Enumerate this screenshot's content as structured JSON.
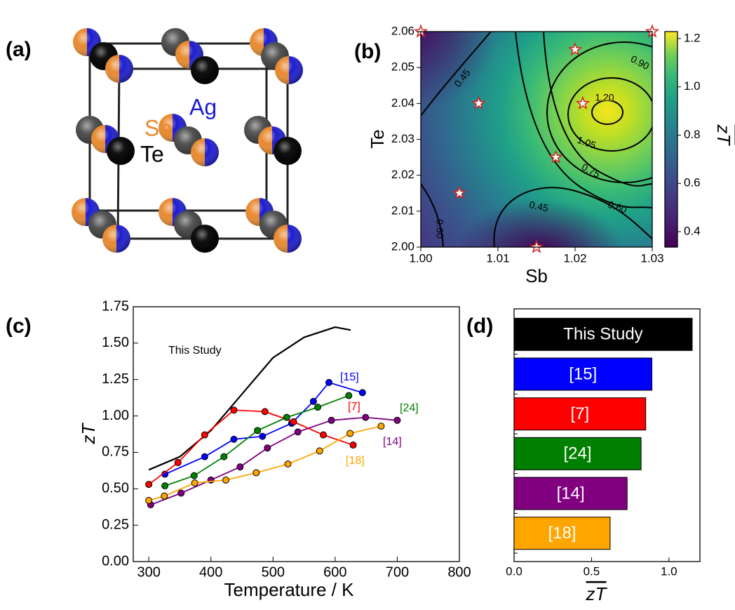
{
  "structure": {
    "panel_label": "(a)",
    "atoms": [
      "Sb",
      "Ag",
      "Te"
    ]
  },
  "chart_data": [
    {
      "type": "contour",
      "panel_label": "(b)",
      "xlabel": "Sb",
      "ylabel": "Te",
      "xlim": [
        1.0,
        1.03
      ],
      "ylim": [
        2.0,
        2.06
      ],
      "xticks": [
        {
          "value": 1.0,
          "label": "1.00"
        },
        1.01,
        1.02,
        1.03
      ],
      "yticks": [
        {
          "value": 2.0,
          "label": "2.00"
        },
        2.01,
        2.02,
        2.03,
        2.04,
        2.05,
        2.06
      ],
      "contour_labels": [
        "0.45",
        "0.90",
        "1.20",
        "1.05",
        "0.75",
        "0.60",
        "0.45",
        "0.60"
      ],
      "points": {
        "x": [
          1.0,
          1.0075,
          1.005,
          1.015,
          1.0175,
          1.02,
          1.021,
          1.03
        ],
        "y": [
          2.06,
          2.04,
          2.015,
          2.0,
          2.025,
          2.055,
          2.04,
          2.06
        ]
      },
      "colorbar": {
        "label": "zT",
        "clim": [
          0.336,
          1.229
        ],
        "ticks": [
          0.4,
          0.6,
          0.8,
          {
            "value": 1.0,
            "label": "1.0"
          },
          1.2
        ]
      }
    },
    {
      "type": "line",
      "panel_label": "(c)",
      "xlabel": "Temperature / K",
      "ylabel": "zT",
      "xlim": [
        275,
        800
      ],
      "ylim": [
        0,
        1.75
      ],
      "xticks": [
        300,
        400,
        500,
        600,
        700,
        800
      ],
      "yticks": [
        {
          "value": 0,
          "label": "0.00"
        },
        0.25,
        {
          "value": 0.5,
          "label": "0.50"
        },
        0.75,
        {
          "value": 1,
          "label": "1.00"
        },
        1.25,
        {
          "value": 1.5,
          "label": "1.50"
        },
        1.75
      ],
      "series": [
        {
          "name": "This Study",
          "color": "#000000",
          "markers": false,
          "x": [
            300,
            350,
            400,
            450,
            500,
            550,
            600,
            625
          ],
          "values": [
            0.63,
            0.72,
            0.9,
            1.15,
            1.4,
            1.54,
            1.61,
            1.59
          ]
        },
        {
          "name": "[15]",
          "color": "#0000ff",
          "markers": true,
          "x": [
            326,
            390,
            437,
            483,
            530,
            565,
            590,
            644
          ],
          "values": [
            0.6,
            0.72,
            0.84,
            0.86,
            0.95,
            1.1,
            1.23,
            1.16
          ]
        },
        {
          "name": "[7]",
          "color": "#ff0000",
          "markers": true,
          "x": [
            300,
            347,
            390,
            437,
            487,
            533,
            581,
            629
          ],
          "values": [
            0.53,
            0.68,
            0.87,
            1.04,
            1.03,
            0.96,
            0.87,
            0.8
          ]
        },
        {
          "name": "[24]",
          "color": "#008000",
          "markers": true,
          "x": [
            326,
            373,
            421,
            475,
            522,
            572,
            622
          ],
          "values": [
            0.52,
            0.59,
            0.72,
            0.9,
            0.99,
            1.06,
            1.14
          ]
        },
        {
          "name": "[14]",
          "color": "#800080",
          "markers": true,
          "x": [
            303,
            352,
            400,
            447,
            491,
            540,
            594,
            649,
            700
          ],
          "values": [
            0.39,
            0.47,
            0.56,
            0.65,
            0.78,
            0.89,
            0.97,
            0.99,
            0.97
          ]
        },
        {
          "name": "[18]",
          "color": "#ffa500",
          "markers": true,
          "x": [
            300,
            325,
            374,
            424,
            473,
            524,
            575,
            624,
            674
          ],
          "values": [
            0.42,
            0.45,
            0.54,
            0.56,
            0.61,
            0.67,
            0.76,
            0.88,
            0.93
          ]
        }
      ]
    },
    {
      "type": "barh",
      "panel_label": "(d)",
      "xlabel": "zT",
      "categories": [
        "This Study",
        "[15]",
        "[7]",
        "[24]",
        "[14]",
        "[18]"
      ],
      "values": [
        1.15,
        0.89,
        0.85,
        0.82,
        0.73,
        0.62
      ],
      "colors": [
        "#000000",
        "#0000ff",
        "#ff0000",
        "#008000",
        "#800080",
        "#ffa500"
      ],
      "xlim": [
        0,
        1.2
      ],
      "xticks": [
        {
          "value": 0,
          "label": "0.0"
        },
        0.5,
        {
          "value": 1,
          "label": "1.0"
        }
      ]
    }
  ]
}
